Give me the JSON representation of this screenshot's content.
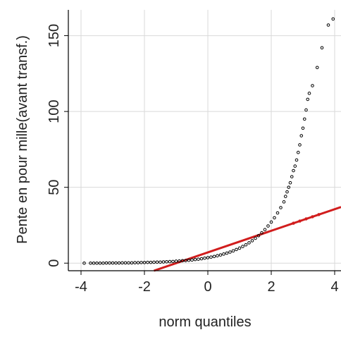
{
  "chart_data": {
    "type": "scatter",
    "title": "",
    "xlabel": "norm quantiles",
    "ylabel": "Pente en pour mille(avant transf.)",
    "xlim": [
      -4.4,
      4.2
    ],
    "ylim": [
      -5,
      167
    ],
    "x_ticks": [
      -4,
      -2,
      0,
      2,
      4
    ],
    "y_ticks": [
      0,
      50,
      100,
      150
    ],
    "grid": true,
    "series": [
      {
        "kind": "points",
        "color": "#000000",
        "points": [
          [
            -3.9,
            0.0
          ],
          [
            -3.7,
            0.0
          ],
          [
            -3.6,
            0.0
          ],
          [
            -3.5,
            0.0
          ],
          [
            -3.4,
            0.0
          ],
          [
            -3.3,
            0.0
          ],
          [
            -3.2,
            0.1
          ],
          [
            -3.1,
            0.1
          ],
          [
            -3.0,
            0.1
          ],
          [
            -2.9,
            0.1
          ],
          [
            -2.8,
            0.1
          ],
          [
            -2.7,
            0.2
          ],
          [
            -2.6,
            0.2
          ],
          [
            -2.5,
            0.2
          ],
          [
            -2.4,
            0.2
          ],
          [
            -2.3,
            0.3
          ],
          [
            -2.2,
            0.3
          ],
          [
            -2.1,
            0.4
          ],
          [
            -2.0,
            0.4
          ],
          [
            -1.9,
            0.5
          ],
          [
            -1.8,
            0.5
          ],
          [
            -1.7,
            0.6
          ],
          [
            -1.6,
            0.7
          ],
          [
            -1.5,
            0.7
          ],
          [
            -1.4,
            0.8
          ],
          [
            -1.3,
            0.9
          ],
          [
            -1.2,
            1.0
          ],
          [
            -1.1,
            1.1
          ],
          [
            -1.0,
            1.3
          ],
          [
            -0.9,
            1.4
          ],
          [
            -0.8,
            1.6
          ],
          [
            -0.7,
            1.7
          ],
          [
            -0.6,
            1.9
          ],
          [
            -0.5,
            2.1
          ],
          [
            -0.4,
            2.4
          ],
          [
            -0.3,
            2.6
          ],
          [
            -0.2,
            2.9
          ],
          [
            -0.1,
            3.3
          ],
          [
            0.0,
            3.6
          ],
          [
            0.1,
            4.0
          ],
          [
            0.2,
            4.4
          ],
          [
            0.3,
            4.9
          ],
          [
            0.4,
            5.4
          ],
          [
            0.5,
            6.0
          ],
          [
            0.6,
            6.6
          ],
          [
            0.7,
            7.3
          ],
          [
            0.8,
            8.1
          ],
          [
            0.9,
            9.0
          ],
          [
            1.0,
            9.9
          ],
          [
            1.1,
            11.0
          ],
          [
            1.2,
            12.1
          ],
          [
            1.3,
            13.4
          ],
          [
            1.4,
            14.8
          ],
          [
            1.5,
            16.4
          ],
          [
            1.6,
            18.1
          ],
          [
            1.7,
            20.0
          ],
          [
            1.8,
            22.1
          ],
          [
            1.9,
            24.5
          ],
          [
            2.0,
            27.1
          ],
          [
            2.1,
            29.9
          ],
          [
            2.2,
            33.1
          ],
          [
            2.3,
            36.6
          ],
          [
            2.4,
            40.4
          ],
          [
            2.45,
            44
          ],
          [
            2.5,
            47
          ],
          [
            2.55,
            50
          ],
          [
            2.6,
            53
          ],
          [
            2.65,
            57
          ],
          [
            2.7,
            61
          ],
          [
            2.75,
            64
          ],
          [
            2.8,
            68
          ],
          [
            2.85,
            73
          ],
          [
            2.9,
            78
          ],
          [
            2.95,
            84
          ],
          [
            3.0,
            89
          ],
          [
            3.05,
            95
          ],
          [
            3.1,
            101
          ],
          [
            3.15,
            108
          ],
          [
            3.2,
            112
          ],
          [
            3.3,
            117
          ],
          [
            3.45,
            129
          ],
          [
            3.6,
            142
          ],
          [
            3.8,
            157
          ],
          [
            3.95,
            161
          ]
        ]
      },
      {
        "kind": "line",
        "color": "#d11d1d",
        "points": [
          [
            -1.7,
            -5
          ],
          [
            4.2,
            37
          ]
        ]
      }
    ]
  }
}
